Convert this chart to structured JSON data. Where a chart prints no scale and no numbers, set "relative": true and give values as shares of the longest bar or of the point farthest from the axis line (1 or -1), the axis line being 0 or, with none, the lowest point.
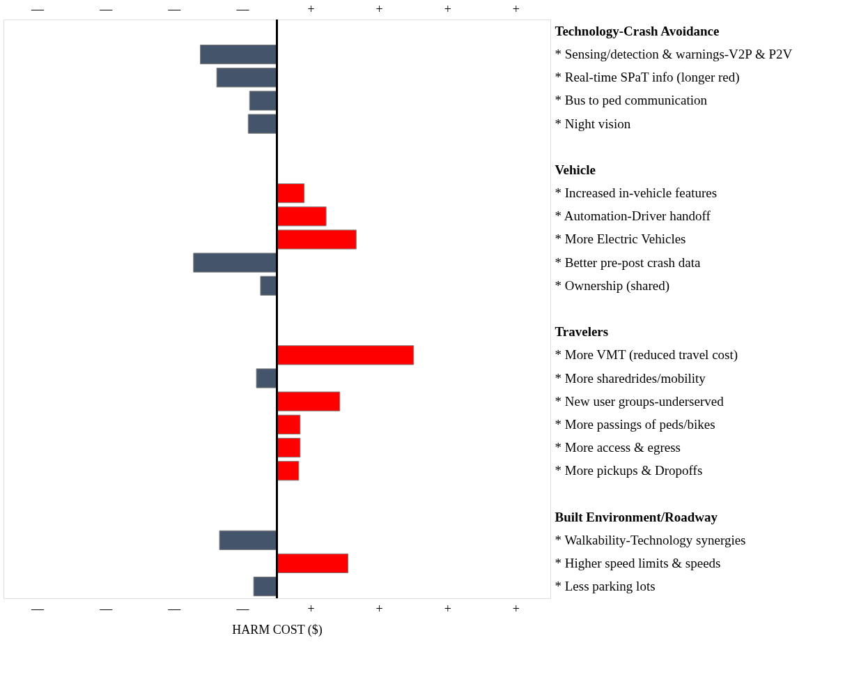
{
  "chart_data": {
    "type": "bar",
    "orientation": "horizontal",
    "relative": true,
    "xlabel": "HARM COST ($)",
    "categories": [
      "Technology-Crash Avoidance",
      "* Sensing/detection & warnings-V2P & P2V",
      "* Real-time SPaT info (longer red)",
      "* Bus to ped communication",
      "* Night vision",
      null,
      "Vehicle",
      "* Increased in-vehicle features",
      "* Automation-Driver handoff",
      "* More Electric Vehicles",
      "* Better pre-post crash data",
      "* Ownership (shared)",
      null,
      "Travelers",
      "* More VMT (reduced travel cost)",
      "* More sharedrides/mobility",
      "* New user groups-underserved",
      "* More passings of peds/bikes",
      "* More access & egress",
      "* More pickups & Dropoffs",
      null,
      "Built Environment/Roadway",
      "* Walkability-Technology synergies",
      "* Higher speed limits & speeds",
      "* Less parking lots"
    ],
    "values": [
      null,
      -0.56,
      -0.44,
      -0.2,
      -0.21,
      null,
      null,
      0.2,
      0.36,
      0.58,
      -0.61,
      -0.12,
      null,
      null,
      1.0,
      -0.15,
      0.46,
      0.17,
      0.17,
      0.16,
      null,
      null,
      -0.42,
      0.52,
      -0.17
    ],
    "colors": [
      null,
      "#44546a",
      "#44546a",
      "#44546a",
      "#44546a",
      null,
      null,
      "#ff0000",
      "#ff0000",
      "#ff0000",
      "#44546a",
      "#44546a",
      null,
      null,
      "#ff0000",
      "#44546a",
      "#ff0000",
      "#ff0000",
      "#ff0000",
      "#ff0000",
      null,
      null,
      "#44546a",
      "#ff0000",
      "#44546a"
    ],
    "annotations": [
      "—",
      "—",
      "—",
      "—",
      "+",
      "+",
      "+",
      "+",
      "—",
      "—",
      "—",
      "—",
      "+",
      "+",
      "+",
      "+"
    ],
    "grid": false
  }
}
